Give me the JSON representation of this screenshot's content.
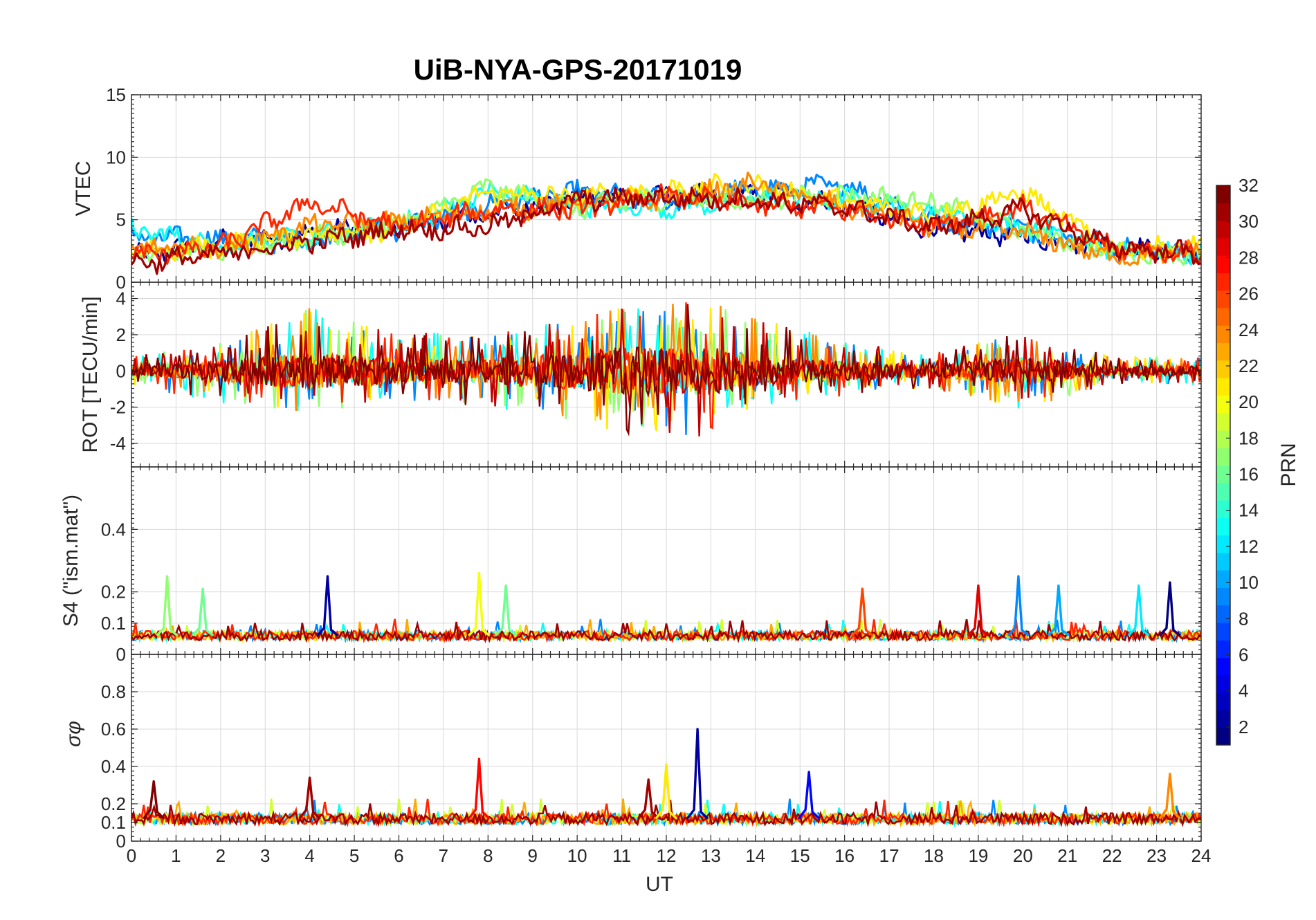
{
  "chart_data": {
    "title": "UiB-NYA-GPS-20171019",
    "type": "line",
    "xlabel": "UT",
    "xlim": [
      0,
      24
    ],
    "xticks": [
      0,
      1,
      2,
      3,
      4,
      5,
      6,
      7,
      8,
      9,
      10,
      11,
      12,
      13,
      14,
      15,
      16,
      17,
      18,
      19,
      20,
      21,
      22,
      23,
      24
    ],
    "colorbar": {
      "label": "PRN",
      "range": [
        1,
        32
      ],
      "ticks": [
        2,
        4,
        6,
        8,
        10,
        12,
        14,
        16,
        18,
        20,
        22,
        24,
        26,
        28,
        30,
        32
      ],
      "colormap": "jet"
    },
    "panels": [
      {
        "id": "vtec",
        "ylabel": "VTEC",
        "ylim": [
          0,
          15
        ],
        "yticks": [
          0,
          5,
          10,
          15
        ],
        "ytick_labels": [
          "0",
          "5",
          "10",
          "15"
        ],
        "series": [
          {
            "prn": 2,
            "x": [
              0,
              2,
              4,
              6,
              8,
              10,
              12,
              14,
              16,
              18,
              20,
              22,
              24
            ],
            "y": [
              2.0,
              3.2,
              3.9,
              4.6,
              5.5,
              6.7,
              6.8,
              7.1,
              6.1,
              4.3,
              3.7,
              2.7,
              2.4
            ]
          },
          {
            "prn": 9,
            "x": [
              0,
              2,
              4,
              6,
              8,
              10,
              12,
              14,
              16,
              18,
              20,
              22,
              24
            ],
            "y": [
              3.6,
              3.4,
              3.3,
              4.3,
              6.2,
              7.2,
              6.5,
              7.4,
              7.8,
              5.0,
              4.3,
              2.9,
              2.3
            ]
          },
          {
            "prn": 13,
            "x": [
              0,
              2,
              4,
              6,
              8,
              10,
              12,
              14,
              16,
              18,
              20,
              22,
              24
            ],
            "y": [
              4.2,
              3.0,
              3.6,
              4.4,
              7.2,
              6.2,
              6.0,
              6.7,
              6.6,
              5.6,
              4.5,
              2.6,
              2.4
            ]
          },
          {
            "prn": 17,
            "x": [
              0,
              2,
              4,
              6,
              8,
              10,
              12,
              14,
              16,
              18,
              20,
              22,
              24
            ],
            "y": [
              2.5,
              2.6,
              3.5,
              4.6,
              7.6,
              5.9,
              6.8,
              6.4,
              7.0,
              6.4,
              4.2,
              2.4,
              2.2
            ]
          },
          {
            "prn": 21,
            "x": [
              0,
              2,
              4,
              6,
              8,
              10,
              12,
              14,
              16,
              18,
              20,
              22,
              24
            ],
            "y": [
              2.3,
              2.9,
              3.9,
              4.2,
              7.2,
              6.8,
              7.4,
              7.8,
              6.4,
              5.4,
              7.2,
              2.6,
              2.9
            ]
          },
          {
            "prn": 24,
            "x": [
              0,
              2,
              4,
              6,
              8,
              10,
              12,
              14,
              16,
              18,
              20,
              22,
              24
            ],
            "y": [
              2.6,
              2.7,
              4.5,
              4.8,
              5.7,
              6.4,
              6.6,
              7.9,
              6.0,
              4.5,
              4.0,
              2.0,
              2.5
            ]
          },
          {
            "prn": 27,
            "x": [
              0,
              2,
              4,
              6,
              8,
              10,
              12,
              14,
              16,
              18,
              20,
              22,
              24
            ],
            "y": [
              2.1,
              2.8,
              6.4,
              4.4,
              5.8,
              5.8,
              6.9,
              6.2,
              5.8,
              4.6,
              6.0,
              2.7,
              2.2
            ]
          },
          {
            "prn": 31,
            "x": [
              0,
              2,
              4,
              6,
              8,
              10,
              12,
              14,
              16,
              18,
              20,
              22,
              24
            ],
            "y": [
              1.5,
              2.2,
              3.2,
              4.2,
              4.4,
              6.6,
              6.8,
              6.5,
              6.0,
              4.3,
              5.8,
              2.8,
              2.3
            ]
          }
        ]
      },
      {
        "id": "rot",
        "ylabel": "ROT [TECU/min]",
        "ylim": [
          -5.3,
          4.9
        ],
        "yticks": [
          -4,
          -2,
          0,
          2,
          4
        ],
        "ytick_labels": [
          "-4",
          "-2",
          "0",
          "2",
          "4"
        ],
        "envelope": {
          "x": [
            0,
            2,
            4,
            6,
            8,
            10,
            11,
            12,
            13,
            14,
            16,
            18,
            20,
            22,
            24
          ],
          "max": [
            0.8,
            1.6,
            3.5,
            2.2,
            2.0,
            3.0,
            4.0,
            4.0,
            3.8,
            3.0,
            1.6,
            1.0,
            2.2,
            0.8,
            0.8
          ],
          "min": [
            -0.8,
            -1.8,
            -2.4,
            -1.6,
            -2.0,
            -2.8,
            -3.6,
            -3.5,
            -3.7,
            -2.0,
            -1.4,
            -1.0,
            -2.2,
            -0.7,
            -0.8
          ]
        }
      },
      {
        "id": "s4",
        "ylabel": "S4 (\"ism.mat\")",
        "ylim": [
          0,
          0.6
        ],
        "yticks": [
          0,
          0.1,
          0.2,
          0.4
        ],
        "ytick_labels": [
          "0",
          "0.1",
          "0.2",
          "0.4"
        ],
        "baseline": 0.06,
        "peaks": [
          {
            "x": 0.8,
            "y": 0.25,
            "prn": 17
          },
          {
            "x": 1.6,
            "y": 0.21,
            "prn": 16
          },
          {
            "x": 4.4,
            "y": 0.25,
            "prn": 2
          },
          {
            "x": 7.8,
            "y": 0.26,
            "prn": 20
          },
          {
            "x": 8.4,
            "y": 0.22,
            "prn": 16
          },
          {
            "x": 16.4,
            "y": 0.21,
            "prn": 26
          },
          {
            "x": 19.0,
            "y": 0.22,
            "prn": 29
          },
          {
            "x": 19.9,
            "y": 0.25,
            "prn": 9
          },
          {
            "x": 20.8,
            "y": 0.22,
            "prn": 10
          },
          {
            "x": 22.6,
            "y": 0.22,
            "prn": 12
          },
          {
            "x": 23.3,
            "y": 0.23,
            "prn": 1
          }
        ]
      },
      {
        "id": "sigma_phi",
        "ylabel": "σφ",
        "ylim": [
          0,
          1.0
        ],
        "yticks": [
          0,
          0.1,
          0.2,
          0.4,
          0.6,
          0.8
        ],
        "ytick_labels": [
          "0",
          "0.1",
          "0.2",
          "0.4",
          "0.6",
          "0.8"
        ],
        "baseline": 0.12,
        "peaks": [
          {
            "x": 0.5,
            "y": 0.32,
            "prn": 32
          },
          {
            "x": 4.0,
            "y": 0.34,
            "prn": 31
          },
          {
            "x": 7.8,
            "y": 0.44,
            "prn": 28
          },
          {
            "x": 11.6,
            "y": 0.33,
            "prn": 31
          },
          {
            "x": 12.0,
            "y": 0.41,
            "prn": 21
          },
          {
            "x": 12.7,
            "y": 0.6,
            "prn": 2
          },
          {
            "x": 15.2,
            "y": 0.37,
            "prn": 5
          },
          {
            "x": 23.3,
            "y": 0.36,
            "prn": 24
          }
        ]
      }
    ]
  }
}
